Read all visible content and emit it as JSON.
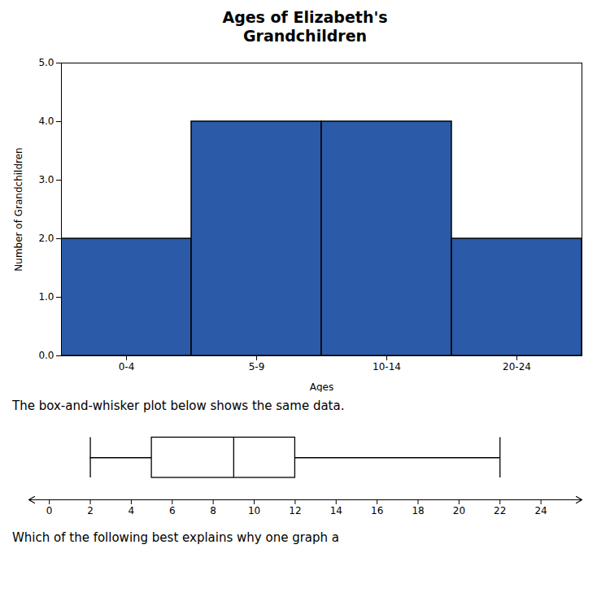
{
  "chart_data": [
    {
      "type": "bar",
      "title": "Ages of Elizabeth's\nGrandchildren",
      "xlabel": "Ages",
      "ylabel": "Number of Grandchildren",
      "categories": [
        "0-4",
        "5-9",
        "10-14",
        "20-24"
      ],
      "values": [
        2,
        4,
        4,
        2
      ],
      "color": "#2B5BA8",
      "ylim": [
        0,
        5
      ],
      "yticks": [
        0,
        1,
        2,
        3,
        4,
        5
      ],
      "grid": false
    },
    {
      "type": "box",
      "annotations": [
        "The box-and-whisker plot below shows the same data.",
        "Which of the following best explains why one graph a"
      ],
      "min": 2,
      "q1": 5,
      "median": 9,
      "q3": 12,
      "max": 22,
      "xlim": [
        -1,
        26
      ],
      "xticks": [
        0,
        2,
        4,
        6,
        8,
        10,
        12,
        14,
        16,
        18,
        20,
        22,
        24
      ],
      "grid": false
    }
  ]
}
